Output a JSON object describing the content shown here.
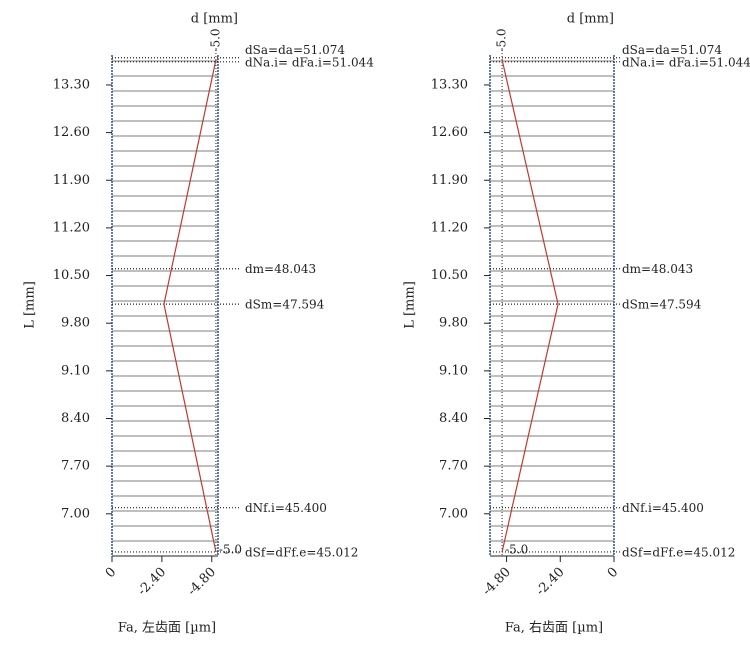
{
  "chart_data": [
    {
      "type": "line",
      "title": "d [mm]",
      "xlabel": "Fa, 左齿面 [µm]",
      "ylabel": "L [mm]",
      "xlim": [
        0,
        -5.1
      ],
      "ylim": [
        6.38,
        13.74
      ],
      "xticks": [
        0,
        {
          "value": -2.4,
          "label": "-2.40"
        },
        {
          "value": -4.8,
          "label": "-4.80"
        }
      ],
      "yticks": [
        {
          "value": 13.3,
          "label": "13.30"
        },
        {
          "value": 12.6,
          "label": "12.60"
        },
        {
          "value": 11.9,
          "label": "11.90"
        },
        {
          "value": 11.2,
          "label": "11.20"
        },
        {
          "value": 10.5,
          "label": "10.50"
        },
        {
          "value": 9.8,
          "label": "9.80"
        },
        {
          "value": 9.1,
          "label": "9.10"
        },
        {
          "value": 8.4,
          "label": "8.40"
        },
        {
          "value": 7.7,
          "label": "7.70"
        },
        {
          "value": 7.0,
          "label": "7.00"
        }
      ],
      "series": [
        {
          "color": "#c0392b",
          "x": [
            -5.0,
            -2.5,
            -5.0
          ],
          "values": [
            13.67,
            10.08,
            6.44
          ]
        }
      ],
      "levels": [
        {
          "label": "dSa=da=51.074",
          "value": 13.7
        },
        {
          "label": "dNa.i= dFa.i=51.044",
          "value": 13.64
        },
        {
          "label": "dm=48.043",
          "value": 10.6
        },
        {
          "label": "dSm=47.594",
          "value": 10.08
        },
        {
          "label": "dNf.i=45.400",
          "value": 7.09
        },
        {
          "label": "dSf=dFf.e=45.012",
          "value": 6.44
        }
      ],
      "annotations": [
        {
          "text": "-5.0",
          "x": -5.0
        },
        {
          "text": "-5.0",
          "x": -5.0
        }
      ]
    },
    {
      "type": "line",
      "title": "d [mm]",
      "xlabel": "Fa, 右齿面 [µm]",
      "ylabel": "L [mm]",
      "xlim": [
        -5.54,
        0
      ],
      "ylim": [
        6.38,
        13.74
      ],
      "xticks": [
        {
          "value": -4.8,
          "label": "-4.80"
        },
        {
          "value": -2.4,
          "label": "-2.40"
        },
        0
      ],
      "yticks": [
        {
          "value": 13.3,
          "label": "13.30"
        },
        {
          "value": 12.6,
          "label": "12.60"
        },
        {
          "value": 11.9,
          "label": "11.90"
        },
        {
          "value": 11.2,
          "label": "11.20"
        },
        {
          "value": 10.5,
          "label": "10.50"
        },
        {
          "value": 9.8,
          "label": "9.80"
        },
        {
          "value": 9.1,
          "label": "9.10"
        },
        {
          "value": 8.4,
          "label": "8.40"
        },
        {
          "value": 7.7,
          "label": "7.70"
        },
        {
          "value": 7.0,
          "label": "7.00"
        }
      ],
      "series": [
        {
          "color": "#c0392b",
          "x": [
            -5.0,
            -2.5,
            -5.0
          ],
          "values": [
            13.67,
            10.08,
            6.44
          ]
        }
      ],
      "levels": [
        {
          "label": "dSa=da=51.074",
          "value": 13.7
        },
        {
          "label": "dNa.i= dFa.i=51.044",
          "value": 13.64
        },
        {
          "label": "dm=48.043",
          "value": 10.6
        },
        {
          "label": "dSm=47.594",
          "value": 10.08
        },
        {
          "label": "dNf.i=45.400",
          "value": 7.09
        },
        {
          "label": "dSf=dFf.e=45.012",
          "value": 6.44
        }
      ],
      "annotations": [
        {
          "text": "-5.0",
          "x": -5.0
        },
        {
          "text": "-5.0",
          "x": -5.0
        }
      ]
    }
  ]
}
